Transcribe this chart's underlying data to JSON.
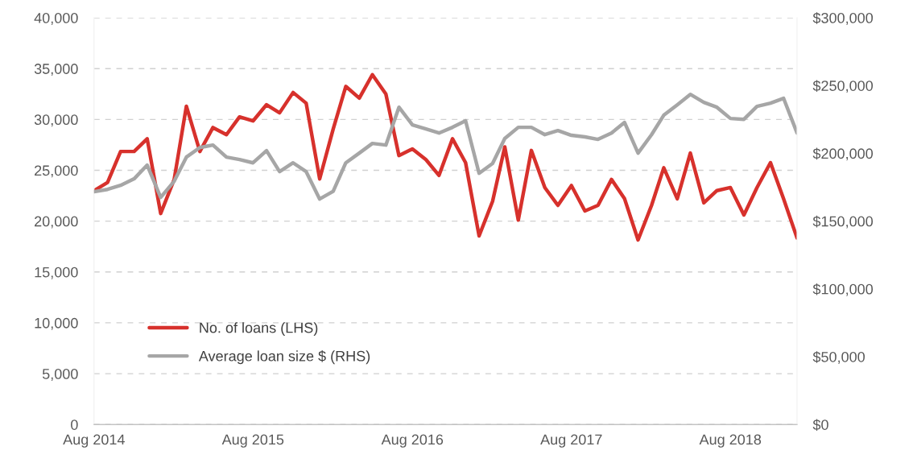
{
  "chart_data": {
    "type": "line",
    "x": [
      "2014-08",
      "2014-09",
      "2014-10",
      "2014-11",
      "2014-12",
      "2015-01",
      "2015-02",
      "2015-03",
      "2015-04",
      "2015-05",
      "2015-06",
      "2015-07",
      "2015-08",
      "2015-09",
      "2015-10",
      "2015-11",
      "2015-12",
      "2016-01",
      "2016-02",
      "2016-03",
      "2016-04",
      "2016-05",
      "2016-06",
      "2016-07",
      "2016-08",
      "2016-09",
      "2016-10",
      "2016-11",
      "2016-12",
      "2017-01",
      "2017-02",
      "2017-03",
      "2017-04",
      "2017-05",
      "2017-06",
      "2017-07",
      "2017-08",
      "2017-09",
      "2017-10",
      "2017-11",
      "2017-12",
      "2018-01",
      "2018-02",
      "2018-03",
      "2018-04",
      "2018-05",
      "2018-06",
      "2018-07",
      "2018-08",
      "2018-09",
      "2018-10",
      "2018-11",
      "2018-12",
      "2019-01"
    ],
    "series": [
      {
        "name": "No. of loans (LHS)",
        "color": "#d7312c",
        "values": [
          23000,
          23800,
          26850,
          26850,
          28100,
          20750,
          24100,
          31300,
          26850,
          29200,
          28500,
          30250,
          29850,
          31450,
          30650,
          32650,
          31600,
          24150,
          29050,
          33250,
          32100,
          34400,
          32500,
          26450,
          27100,
          26050,
          24500,
          28100,
          25750,
          18550,
          21950,
          27300,
          20100,
          26950,
          23300,
          21550,
          23500,
          21000,
          21550,
          24100,
          22200,
          18150,
          21550,
          25250,
          22200,
          26700,
          21800,
          23000,
          23300,
          20600,
          23300,
          25750,
          22200,
          18350
        ]
      },
      {
        "name": "Average loan size $ (RHS)",
        "color": "#a6a6a6",
        "axis": "y2",
        "values": [
          171700,
          173400,
          176400,
          181200,
          191300,
          167500,
          179400,
          197200,
          204300,
          206100,
          197200,
          195400,
          193000,
          202000,
          186500,
          193000,
          186500,
          166300,
          172000,
          193000,
          200200,
          207300,
          206100,
          234000,
          221000,
          218000,
          215000,
          219200,
          224000,
          185300,
          192500,
          210900,
          219200,
          219200,
          213800,
          216800,
          213300,
          212100,
          210300,
          215000,
          222800,
          200200,
          213800,
          228100,
          235800,
          243500,
          237600,
          234000,
          225700,
          225100,
          234600,
          237000,
          240600,
          215000
        ]
      }
    ],
    "xlim": [
      "2014-08",
      "2019-01"
    ],
    "xticks": [
      {
        "value": "2014-08",
        "label": "Aug 2014"
      },
      {
        "value": "2015-08",
        "label": "Aug 2015"
      },
      {
        "value": "2016-08",
        "label": "Aug 2016"
      },
      {
        "value": "2017-08",
        "label": "Aug 2017"
      },
      {
        "value": "2018-08",
        "label": "Aug 2018"
      }
    ],
    "ylim": [
      0,
      40000
    ],
    "yticks": [
      {
        "value": 0,
        "label": "0"
      },
      {
        "value": 5000,
        "label": "5,000"
      },
      {
        "value": 10000,
        "label": "10,000"
      },
      {
        "value": 15000,
        "label": "15,000"
      },
      {
        "value": 20000,
        "label": "20,000"
      },
      {
        "value": 25000,
        "label": "25,000"
      },
      {
        "value": 30000,
        "label": "30,000"
      },
      {
        "value": 35000,
        "label": "35,000"
      },
      {
        "value": 40000,
        "label": "40,000"
      }
    ],
    "y2lim": [
      0,
      300000
    ],
    "y2ticks": [
      {
        "value": 0,
        "label": "$0"
      },
      {
        "value": 50000,
        "label": "$50,000"
      },
      {
        "value": 100000,
        "label": "$100,000"
      },
      {
        "value": 150000,
        "label": "$150,000"
      },
      {
        "value": 200000,
        "label": "$200,000"
      },
      {
        "value": 250000,
        "label": "$250,000"
      },
      {
        "value": 300000,
        "label": "$300,000"
      }
    ],
    "grid": "y",
    "legend": "center left",
    "marker": "none",
    "line_style": "solid"
  }
}
